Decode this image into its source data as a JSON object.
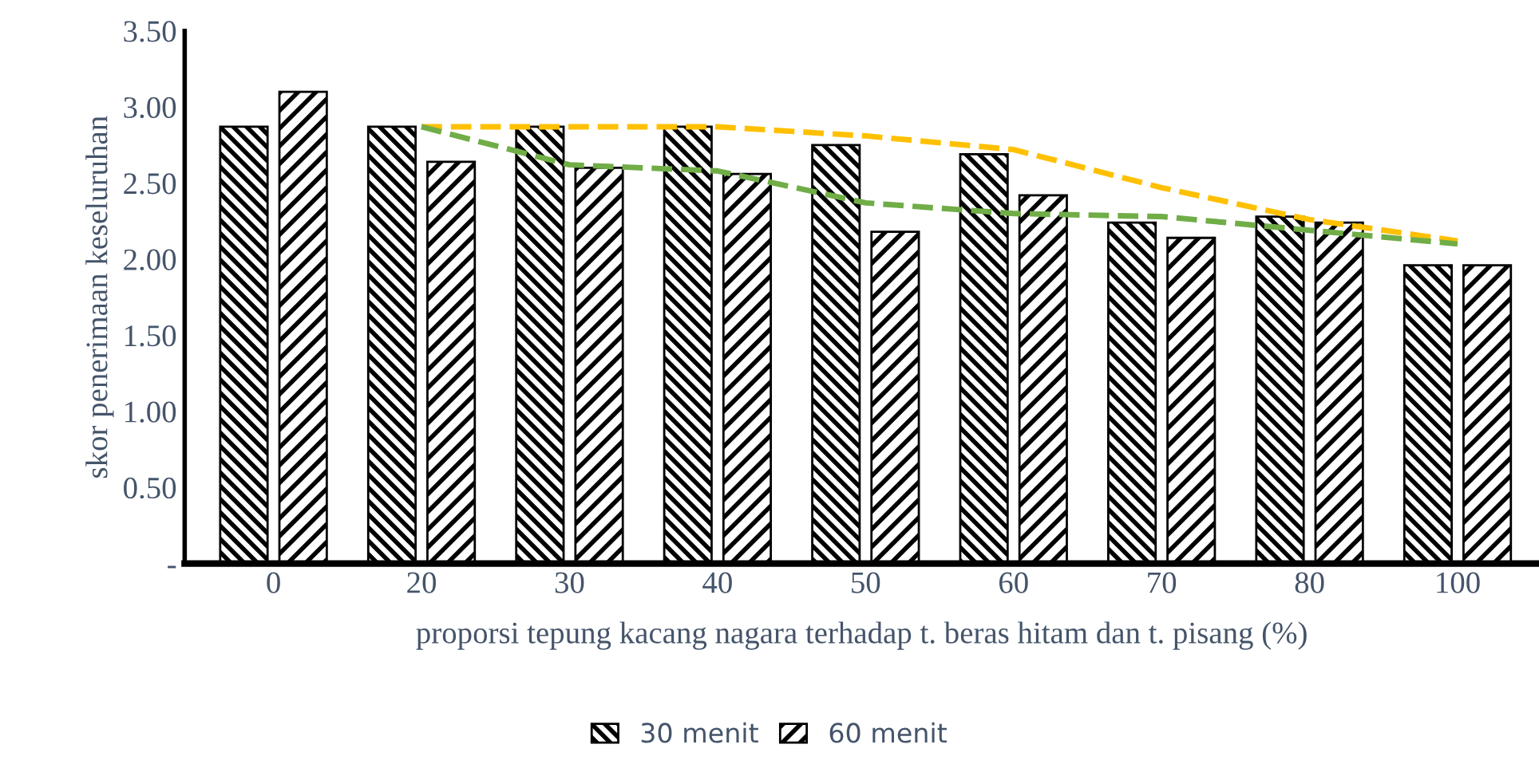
{
  "chart_data": {
    "type": "bar",
    "xlabel": "proporsi tepung kacang nagara terhadap t. beras hitam dan t. pisang (%)",
    "ylabel": "skor penerimaan keseluruhan",
    "categories": [
      "0",
      "20",
      "30",
      "40",
      "50",
      "60",
      "70",
      "80",
      "100"
    ],
    "series": [
      {
        "name": "30 menit",
        "color": "#000000",
        "values": [
          2.87,
          2.87,
          2.87,
          2.87,
          2.75,
          2.69,
          2.24,
          2.28,
          1.96
        ]
      },
      {
        "name": "60 menit",
        "color": "#000000",
        "values": [
          3.1,
          2.64,
          2.6,
          2.56,
          2.18,
          2.42,
          2.14,
          2.24,
          1.96
        ]
      },
      {
        "type": "line",
        "color": "#ffc000",
        "line_style": "dashed",
        "values": [
          null,
          2.87,
          2.87,
          2.87,
          2.81,
          2.72,
          2.47,
          2.26,
          2.12
        ]
      },
      {
        "type": "line",
        "color": "#70ad47",
        "line_style": "dashed",
        "values": [
          null,
          2.87,
          2.62,
          2.58,
          2.37,
          2.3,
          2.28,
          2.19,
          2.1
        ]
      }
    ],
    "ylim": [
      0,
      3.5
    ],
    "yticks": [
      {
        "value": 0,
        "label": "-"
      },
      {
        "value": 0.5,
        "label": "0.50"
      },
      {
        "value": 1,
        "label": "1.00"
      },
      {
        "value": 1.5,
        "label": "1.50"
      },
      {
        "value": 2,
        "label": "2.00"
      },
      {
        "value": 2.5,
        "label": "2.50"
      },
      {
        "value": 3,
        "label": "3.00"
      },
      {
        "value": 3.5,
        "label": "3.50"
      }
    ],
    "grid": false,
    "legend": "bottom"
  }
}
